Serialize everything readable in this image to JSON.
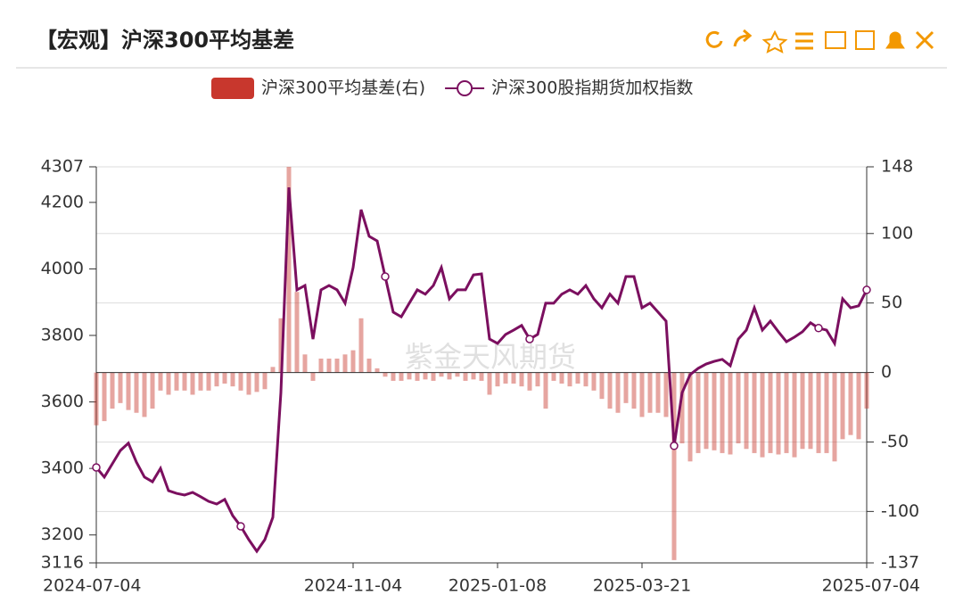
{
  "chart_data": {
    "type": "bar-line",
    "title": "【宏观】沪深300平均基差",
    "watermark": "紫金天风期货",
    "categories": [
      "2024-07-04",
      null,
      null,
      null,
      null,
      null,
      null,
      null,
      null,
      null,
      null,
      null,
      null,
      null,
      null,
      null,
      null,
      null,
      null,
      null,
      null,
      null,
      null,
      null,
      null,
      null,
      null,
      null,
      null,
      null,
      null,
      null,
      "2024-11-04",
      null,
      null,
      null,
      null,
      null,
      null,
      null,
      null,
      null,
      null,
      null,
      null,
      null,
      null,
      null,
      null,
      null,
      "2025-01-08",
      null,
      null,
      null,
      null,
      null,
      null,
      null,
      null,
      null,
      null,
      null,
      null,
      null,
      null,
      null,
      null,
      null,
      "2025-03-21",
      null,
      null,
      null,
      null,
      null,
      null,
      null,
      null,
      null,
      null,
      null,
      null,
      null,
      null,
      null,
      null,
      null,
      null,
      null,
      null,
      null,
      null,
      null,
      null,
      null,
      null,
      null,
      "2025-07-04"
    ],
    "series": [
      {
        "name": "沪深300平均基差(右)",
        "type": "bar",
        "axis": "y2",
        "color": "#c8372d",
        "values": [
          -38,
          -35,
          -26,
          -22,
          -27,
          -29,
          -32,
          -26,
          -13,
          -16,
          -13,
          -13,
          -16,
          -13,
          -13,
          -10,
          -8,
          -10,
          -13,
          -16,
          -14,
          -12,
          4,
          39,
          148,
          58,
          13,
          -6,
          10,
          10,
          10,
          13,
          16,
          39,
          10,
          3,
          -3,
          -6,
          -6,
          -5,
          -6,
          -5,
          -6,
          -3,
          -5,
          -3,
          -6,
          -5,
          -6,
          -16,
          -10,
          -8,
          -8,
          -10,
          -13,
          -10,
          -26,
          -6,
          -8,
          -10,
          -8,
          -10,
          -13,
          -19,
          -26,
          -29,
          -22,
          -26,
          -32,
          -29,
          -29,
          -32,
          -135,
          -51,
          -64,
          -58,
          -55,
          -56,
          -58,
          -59,
          -51,
          -55,
          -58,
          -61,
          -58,
          -59,
          -58,
          -61,
          -55,
          -55,
          -58,
          -58,
          -64,
          -48,
          -45,
          -48,
          -26
        ]
      },
      {
        "name": "沪深300股指期货加权指数",
        "type": "line",
        "color": "#7b0f5f",
        "values": [
          3403,
          3374,
          3414,
          3454,
          3476,
          3419,
          3374,
          3360,
          3400,
          3333,
          3325,
          3320,
          3328,
          3315,
          3301,
          3293,
          3307,
          3258,
          3226,
          3186,
          3151,
          3186,
          3253,
          3628,
          4245,
          3937,
          3950,
          3789,
          3937,
          3950,
          3937,
          3897,
          4004,
          4178,
          4098,
          4084,
          3977,
          3870,
          3856,
          3897,
          3937,
          3924,
          3950,
          4004,
          3910,
          3937,
          3937,
          3982,
          3985,
          3789,
          3776,
          3803,
          3816,
          3830,
          3789,
          3803,
          3897,
          3897,
          3924,
          3937,
          3924,
          3950,
          3910,
          3883,
          3924,
          3897,
          3977,
          3977,
          3883,
          3897,
          3870,
          3843,
          3468,
          3628,
          3682,
          3701,
          3714,
          3722,
          3728,
          3709,
          3789,
          3816,
          3883,
          3816,
          3843,
          3811,
          3781,
          3795,
          3811,
          3838,
          3822,
          3816,
          3776,
          3910,
          3883,
          3889,
          3937
        ]
      }
    ],
    "ylim": [
      3116,
      4307
    ],
    "yticks": [
      3116,
      3200,
      3400,
      3600,
      3800,
      4000,
      4200,
      4307
    ],
    "y2lim": [
      -137,
      148
    ],
    "y2ticks": [
      -137,
      -100,
      -50,
      0,
      50,
      100,
      148
    ],
    "grid": true
  }
}
